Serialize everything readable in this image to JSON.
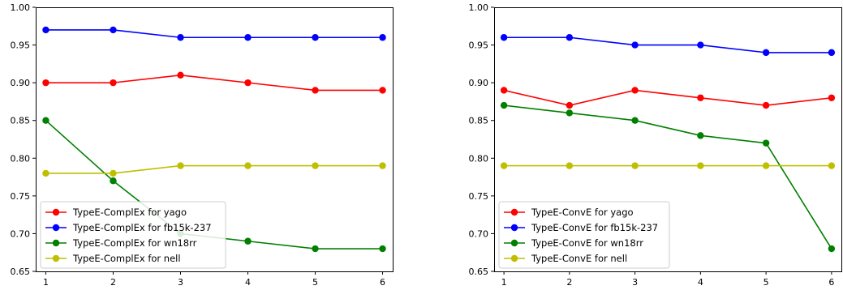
{
  "chart_data": [
    {
      "type": "line",
      "title": "",
      "xlabel": "",
      "ylabel": "",
      "x": [
        1,
        2,
        3,
        4,
        5,
        6
      ],
      "xlim": [
        0.85,
        6.15
      ],
      "ylim": [
        0.65,
        1.0
      ],
      "xticks": [
        "1",
        "2",
        "3",
        "4",
        "5",
        "6"
      ],
      "yticks": [
        "0.65",
        "0.70",
        "0.75",
        "0.80",
        "0.85",
        "0.90",
        "0.95",
        "1.00"
      ],
      "grid": false,
      "legend_position": "lower-left",
      "series": [
        {
          "name": "TypeE-ComplEx for yago",
          "color": "#ff0000",
          "values": [
            0.9,
            0.9,
            0.91,
            0.9,
            0.89,
            0.89
          ]
        },
        {
          "name": "TypeE-ComplEx for fb15k-237",
          "color": "#0000ff",
          "values": [
            0.97,
            0.97,
            0.96,
            0.96,
            0.96,
            0.96
          ]
        },
        {
          "name": "TypeE-ComplEx for wn18rr",
          "color": "#008000",
          "values": [
            0.85,
            0.77,
            0.7,
            0.69,
            0.68,
            0.68
          ]
        },
        {
          "name": "TypeE-ComplEx for nell",
          "color": "#bfbf00",
          "values": [
            0.78,
            0.78,
            0.79,
            0.79,
            0.79,
            0.79
          ]
        }
      ]
    },
    {
      "type": "line",
      "title": "",
      "xlabel": "",
      "ylabel": "",
      "x": [
        1,
        2,
        3,
        4,
        5,
        6
      ],
      "xlim": [
        0.85,
        6.15
      ],
      "ylim": [
        0.65,
        1.0
      ],
      "xticks": [
        "1",
        "2",
        "3",
        "4",
        "5",
        "6"
      ],
      "yticks": [
        "0.65",
        "0.70",
        "0.75",
        "0.80",
        "0.85",
        "0.90",
        "0.95",
        "1.00"
      ],
      "grid": false,
      "legend_position": "lower-left",
      "series": [
        {
          "name": "TypeE-ConvE for yago",
          "color": "#ff0000",
          "values": [
            0.89,
            0.87,
            0.89,
            0.88,
            0.87,
            0.88
          ]
        },
        {
          "name": "TypeE-ConvE for fb15k-237",
          "color": "#0000ff",
          "values": [
            0.96,
            0.96,
            0.95,
            0.95,
            0.94,
            0.94
          ]
        },
        {
          "name": "TypeE-ConvE for wn18rr",
          "color": "#008000",
          "values": [
            0.87,
            0.86,
            0.85,
            0.83,
            0.82,
            0.68
          ]
        },
        {
          "name": "TypeE-ConvE for nell",
          "color": "#bfbf00",
          "values": [
            0.79,
            0.79,
            0.79,
            0.79,
            0.79,
            0.79
          ]
        }
      ]
    }
  ]
}
